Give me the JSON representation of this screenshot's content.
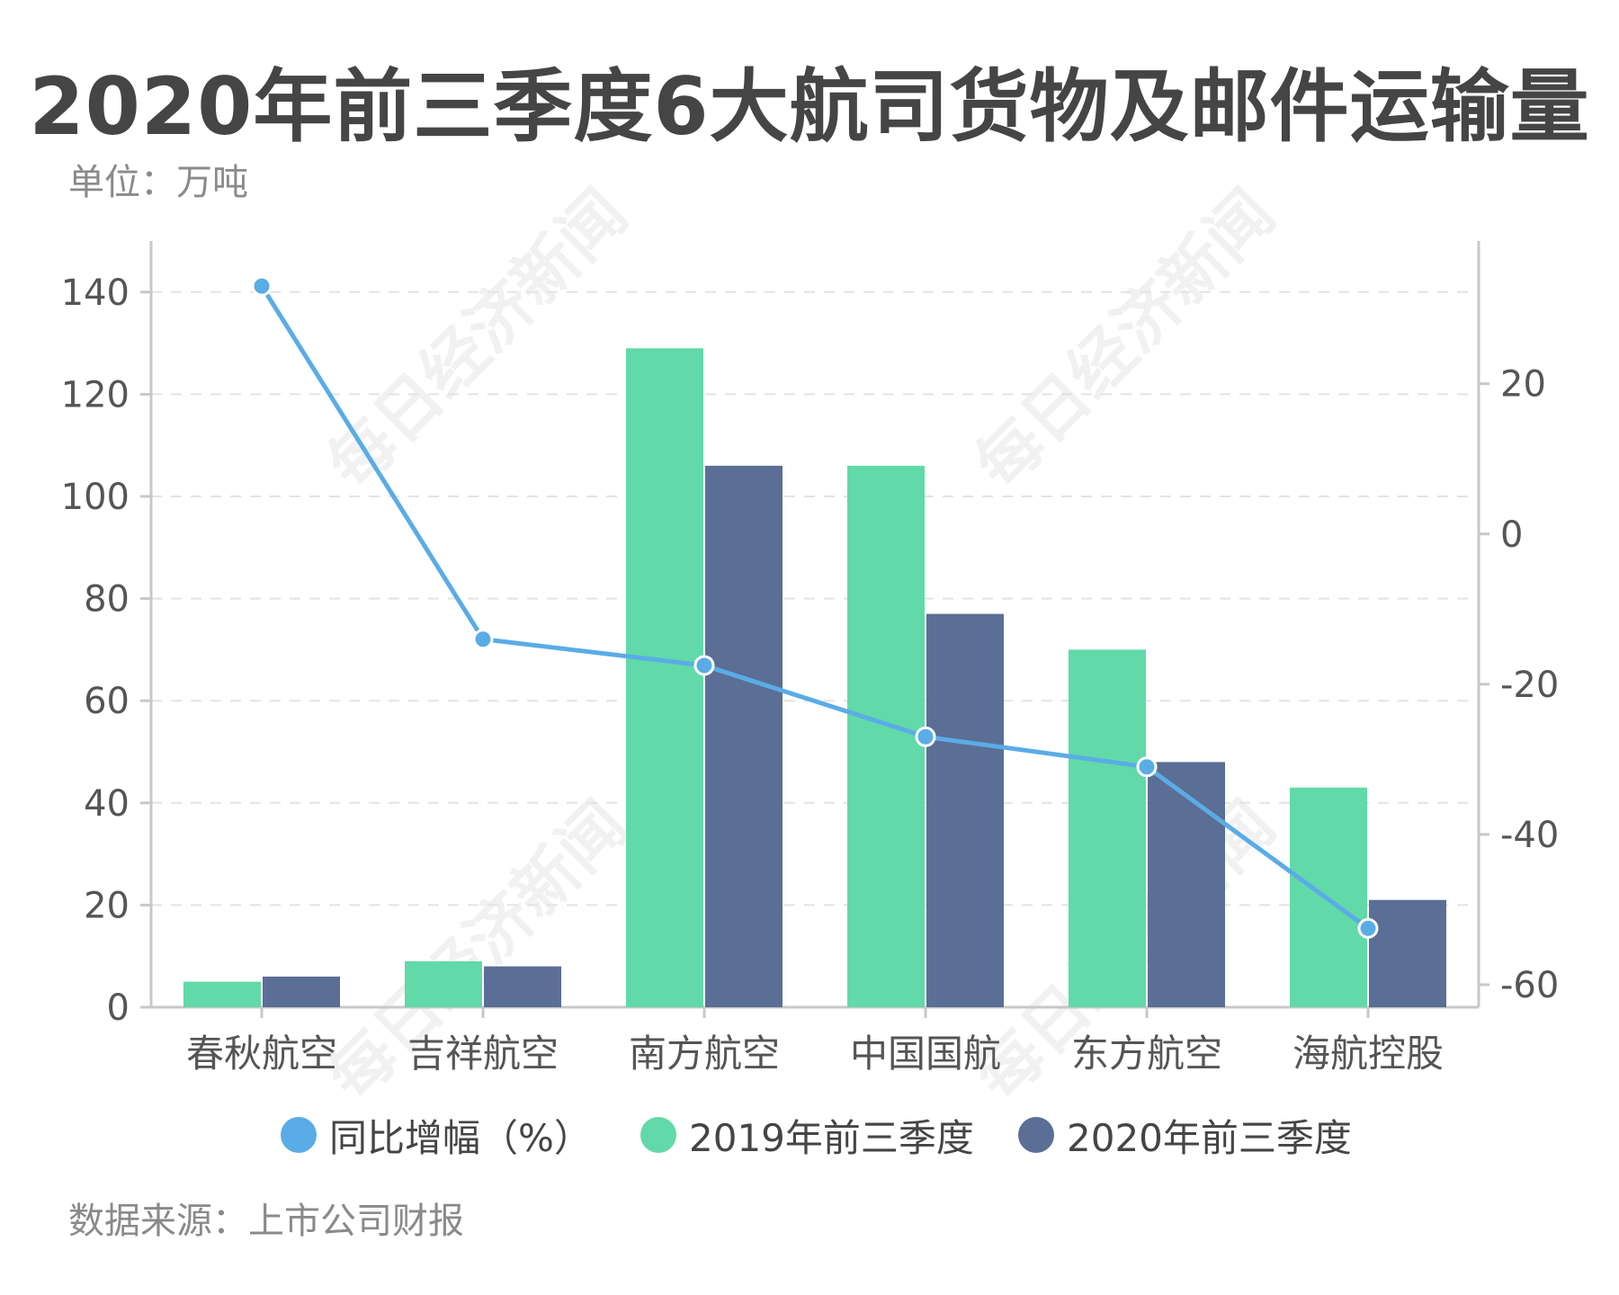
{
  "title": "2020年前三季度6大航司货物及邮件运输量",
  "unit_label": "单位：万吨",
  "source_label": "数据来源：上市公司财报",
  "watermark_text": "每日经济新闻",
  "colors": {
    "series_2019": "#62d9a8",
    "series_2020": "#5b6e95",
    "line": "#5aace6",
    "axis_text": "#555555",
    "grid": "#e3e3e3"
  },
  "chart_data": {
    "type": "bar",
    "categories": [
      "春秋航空",
      "吉祥航空",
      "南方航空",
      "中国国航",
      "东方航空",
      "海航控股"
    ],
    "series": [
      {
        "name": "2019年前三季度",
        "values": [
          5,
          9,
          129,
          106,
          70,
          43
        ],
        "axis": "left"
      },
      {
        "name": "2020年前三季度",
        "values": [
          6,
          8,
          106,
          77,
          48,
          21
        ],
        "axis": "left"
      }
    ],
    "line_series": {
      "name": "同比增幅（%）",
      "values": [
        33,
        -14,
        -17.5,
        -27,
        -31,
        -52.5
      ],
      "axis": "right"
    },
    "ylim_left": [
      0,
      150
    ],
    "yticks_left": [
      0,
      20,
      40,
      60,
      80,
      100,
      120,
      140
    ],
    "ylim_right": [
      -63,
      39
    ],
    "yticks_right": [
      -60,
      -40,
      -20,
      0,
      20
    ],
    "grid": true,
    "legend_position": "bottom"
  },
  "legend": {
    "line_label": "同比增幅（%）",
    "bar1_label": "2019年前三季度",
    "bar2_label": "2020年前三季度"
  }
}
